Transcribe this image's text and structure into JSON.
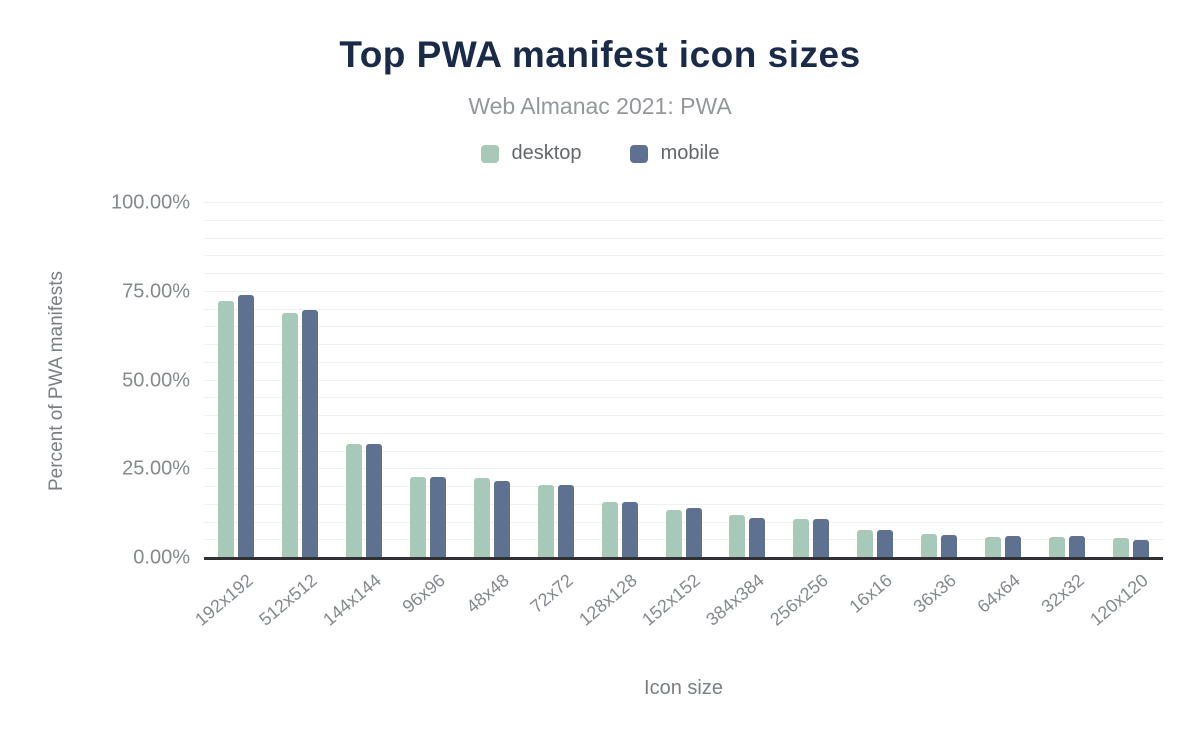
{
  "header": {
    "title": "Top PWA manifest icon sizes",
    "subtitle": "Web Almanac 2021: PWA"
  },
  "legend": {
    "items": [
      {
        "label": "desktop",
        "color": "#a8c9b7"
      },
      {
        "label": "mobile",
        "color": "#5e7190"
      }
    ]
  },
  "chart_data": {
    "type": "bar",
    "title": "Top PWA manifest icon sizes",
    "subtitle": "Web Almanac 2021: PWA",
    "xlabel": "Icon size",
    "ylabel": "Percent of PWA manifests",
    "ylim": [
      0,
      100
    ],
    "ytick_labels": [
      "0.00%",
      "25.00%",
      "50.00%",
      "75.00%",
      "100.00%"
    ],
    "ytick_values": [
      0,
      25,
      50,
      75,
      100
    ],
    "grid": "horizontal minor gridlines every 5%",
    "legend_position": "top center",
    "categories": [
      "192x192",
      "512x512",
      "144x144",
      "96x96",
      "48x48",
      "72x72",
      "128x128",
      "152x152",
      "384x384",
      "256x256",
      "16x16",
      "36x36",
      "64x64",
      "32x32",
      "120x120"
    ],
    "series": [
      {
        "name": "desktop",
        "color": "#a8c9b7",
        "values": [
          72.3,
          69.0,
          32.2,
          22.9,
          22.4,
          20.7,
          15.8,
          13.6,
          12.2,
          11.1,
          7.9,
          6.7,
          5.8,
          5.8,
          5.6
        ]
      },
      {
        "name": "mobile",
        "color": "#5e7190",
        "values": [
          74.0,
          69.9,
          32.1,
          22.9,
          21.8,
          20.7,
          15.7,
          14.1,
          11.3,
          11.1,
          7.9,
          6.6,
          6.3,
          6.3,
          5.0
        ]
      }
    ]
  },
  "colors": {
    "title": "#1a2b49",
    "subtitle": "#94979b",
    "axis_title": "#7b7f84",
    "tick_label": "#85898e",
    "legend_label": "#63686e",
    "gridline": "#f1f1f3",
    "baseline": "#2f3134",
    "background": "#ffffff"
  }
}
